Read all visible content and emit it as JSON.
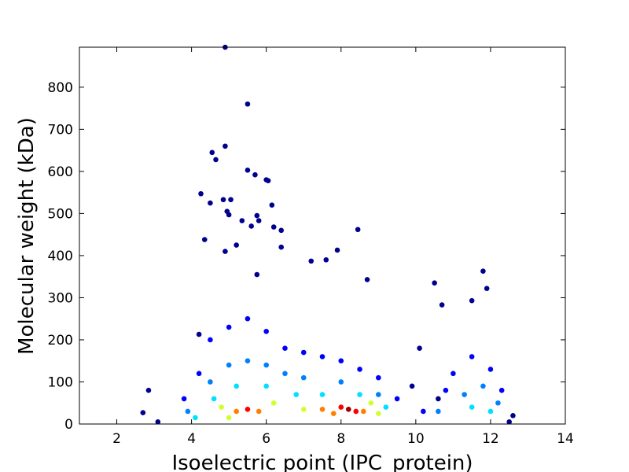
{
  "chart_data": {
    "type": "scatter",
    "x_label": "Isoelectric point (IPC_protein)",
    "y_label": "Molecular weight (kDa)",
    "xlim": [
      1,
      14
    ],
    "xticks": [
      2,
      4,
      6,
      8,
      10,
      12,
      14
    ],
    "ylim": [
      0,
      895
    ],
    "yticks": [
      0,
      100,
      200,
      300,
      400,
      500,
      600,
      700,
      800
    ],
    "series": [
      {
        "color": "#00008f",
        "x": [
          4.9,
          5.5,
          4.9,
          4.55,
          4.65,
          5.5,
          5.7,
          6.0,
          6.05,
          4.25,
          6.15,
          4.85,
          5.05,
          4.5,
          4.95,
          5.0,
          5.75,
          5.8,
          5.35,
          5.6,
          6.2,
          6.4,
          8.45,
          4.35,
          5.2,
          6.4,
          4.9,
          7.9,
          7.6,
          7.2,
          5.75,
          8.7,
          10.5,
          11.8,
          11.9,
          11.5,
          10.7,
          2.85,
          2.7,
          3.1,
          12.5,
          12.6,
          4.2,
          10.1,
          9.9,
          10.6
        ],
        "values": [
          895,
          760,
          660,
          645,
          628,
          603,
          592,
          580,
          578,
          547,
          520,
          533,
          533,
          525,
          505,
          497,
          495,
          483,
          483,
          470,
          468,
          460,
          462,
          438,
          425,
          420,
          410,
          413,
          390,
          387,
          355,
          343,
          335,
          363,
          322,
          293,
          283,
          80,
          27,
          5,
          5,
          20,
          213,
          180,
          90,
          60
        ]
      },
      {
        "color": "#0000ff",
        "x": [
          4.5,
          5.0,
          5.5,
          6.0,
          6.5,
          7.0,
          7.5,
          8.0,
          8.5,
          9.0,
          4.2,
          3.8,
          9.5,
          10.2,
          11.0,
          11.5,
          12.0,
          12.3,
          10.8
        ],
        "values": [
          200,
          230,
          250,
          220,
          180,
          170,
          160,
          150,
          130,
          110,
          120,
          60,
          60,
          30,
          120,
          160,
          130,
          80,
          80
        ]
      },
      {
        "color": "#0080ff",
        "x": [
          4.5,
          5.0,
          5.5,
          6.0,
          6.5,
          7.0,
          8.0,
          9.0,
          11.3,
          11.8,
          12.2,
          10.6,
          3.9
        ],
        "values": [
          100,
          140,
          150,
          140,
          120,
          110,
          100,
          70,
          70,
          90,
          50,
          30,
          30
        ]
      },
      {
        "color": "#00e0ff",
        "x": [
          4.6,
          5.2,
          6.0,
          6.8,
          7.5,
          8.5,
          9.2,
          11.5,
          12.0,
          4.1
        ],
        "values": [
          60,
          90,
          90,
          70,
          70,
          70,
          40,
          40,
          30,
          15
        ]
      },
      {
        "color": "#d0ff30",
        "x": [
          4.8,
          6.2,
          7.0,
          9.0,
          5.0,
          8.8
        ],
        "values": [
          40,
          50,
          35,
          25,
          15,
          50
        ]
      },
      {
        "color": "#ff8000",
        "x": [
          5.2,
          5.8,
          7.5,
          8.6,
          7.8
        ],
        "values": [
          30,
          30,
          35,
          30,
          25
        ]
      },
      {
        "color": "#ff0000",
        "x": [
          5.5,
          8.0,
          8.4
        ],
        "values": [
          35,
          40,
          30
        ]
      },
      {
        "color": "#a00000",
        "x": [
          8.2
        ],
        "values": [
          35
        ]
      }
    ]
  }
}
